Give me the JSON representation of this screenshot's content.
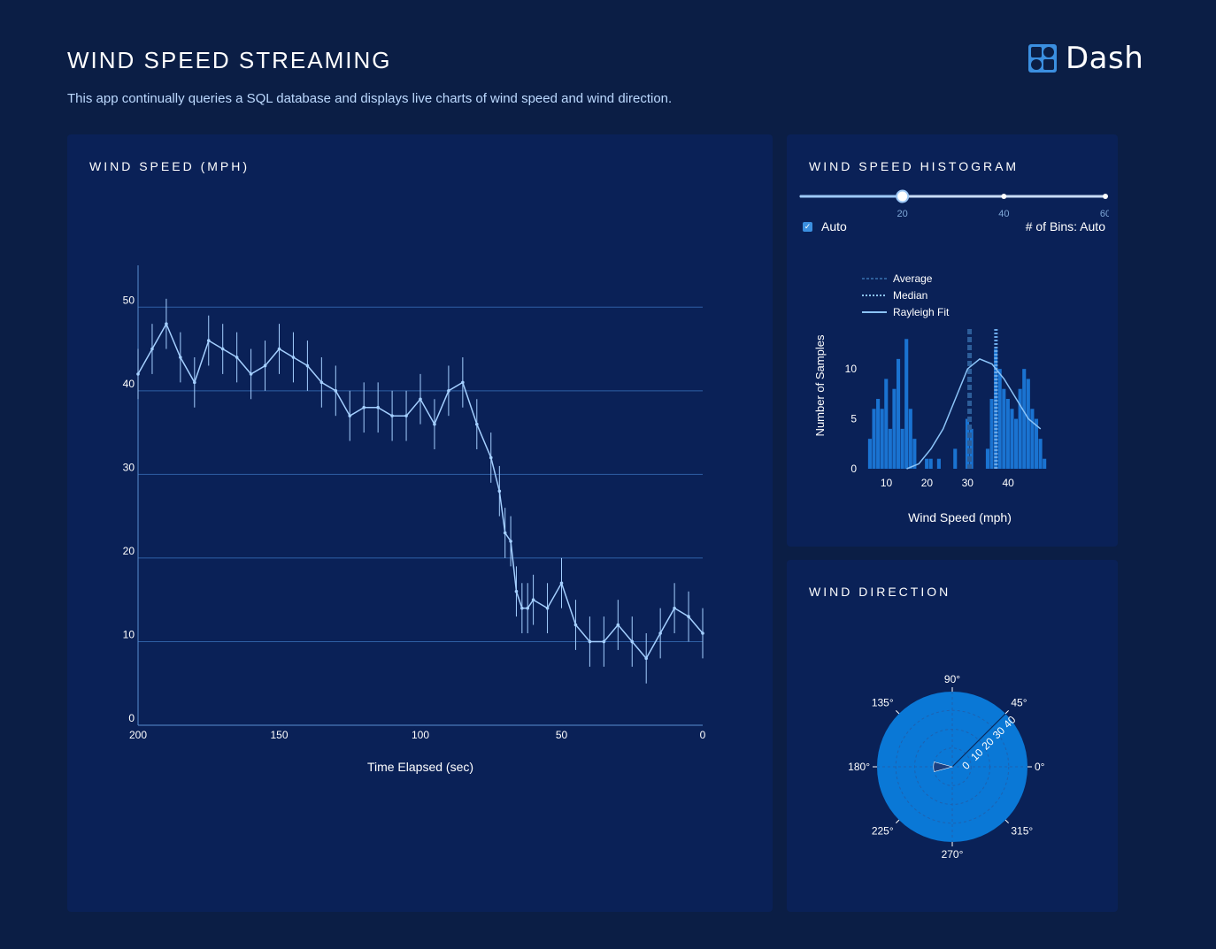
{
  "header": {
    "title": "WIND SPEED STREAMING",
    "description": "This app continually queries a SQL database and displays live charts of wind speed and wind direction.",
    "logo_text": "Dash"
  },
  "speed_panel": {
    "title": "WIND SPEED (MPH)"
  },
  "hist_panel": {
    "title": "WIND SPEED HISTOGRAM",
    "slider": {
      "value": 20,
      "min": 0,
      "max": 60,
      "marks": [
        "20",
        "40",
        "60"
      ]
    },
    "auto_label": "Auto",
    "auto_checked": true,
    "bins_label": "# of Bins: Auto"
  },
  "dir_panel": {
    "title": "WIND DIRECTION"
  },
  "colors": {
    "page_bg": "#0b1e45",
    "panel_bg": "#0a2157",
    "accent": "#3b8fe0",
    "line": "#a4cfff",
    "bar": "#1a73d1",
    "polar_bg": "#0a78d6"
  },
  "chart_data": [
    {
      "type": "line",
      "title": "",
      "xlabel": "Time Elapsed (sec)",
      "ylabel": "",
      "xlim": [
        200,
        0
      ],
      "ylim": [
        0,
        55
      ],
      "x_ticks": [
        "200",
        "150",
        "100",
        "50",
        "0"
      ],
      "y_ticks": [
        "0",
        "10",
        "20",
        "30",
        "40",
        "50"
      ],
      "grid": true,
      "error_bars": true,
      "series": [
        {
          "x": [
            200,
            195,
            190,
            185,
            180,
            175,
            170,
            165,
            160,
            155,
            150,
            145,
            140,
            135,
            130,
            125,
            120,
            115,
            110,
            105,
            100,
            95,
            90,
            85,
            80,
            75,
            72,
            70,
            68,
            66,
            64,
            62,
            60,
            55,
            50,
            45,
            40,
            35,
            30,
            25,
            20,
            15,
            10,
            5,
            0
          ],
          "values": [
            42,
            45,
            48,
            44,
            41,
            46,
            45,
            44,
            42,
            43,
            45,
            44,
            43,
            41,
            40,
            37,
            38,
            38,
            37,
            37,
            39,
            36,
            40,
            41,
            36,
            32,
            28,
            23,
            22,
            16,
            14,
            14,
            15,
            14,
            17,
            12,
            10,
            10,
            12,
            10,
            8,
            11,
            14,
            13,
            11
          ]
        }
      ]
    },
    {
      "type": "bar",
      "title": "",
      "xlabel": "Wind Speed (mph)",
      "ylabel": "Number of Samples",
      "xlim": [
        4,
        50
      ],
      "ylim": [
        0,
        14
      ],
      "x_ticks": [
        "10",
        "20",
        "30",
        "40"
      ],
      "y_ticks": [
        "0",
        "5",
        "10"
      ],
      "legend": [
        "Average",
        "Median",
        "Rayleigh Fit"
      ],
      "legend_position": "top-left",
      "x": [
        6,
        7,
        8,
        9,
        10,
        11,
        12,
        13,
        14,
        15,
        16,
        17,
        20,
        21,
        23,
        27,
        30,
        31,
        35,
        36,
        37,
        38,
        39,
        40,
        41,
        42,
        43,
        44,
        45,
        46,
        47,
        48,
        49
      ],
      "values": [
        3,
        6,
        7,
        6,
        9,
        4,
        8,
        11,
        4,
        13,
        6,
        3,
        1,
        1,
        1,
        2,
        5,
        4,
        2,
        7,
        12,
        10,
        8,
        7,
        6,
        5,
        8,
        10,
        9,
        6,
        5,
        3,
        1
      ],
      "average": 30.5,
      "median": 37,
      "rayleigh_fit": {
        "x": [
          15,
          18,
          21,
          24,
          27,
          30,
          33,
          36,
          39,
          42,
          45,
          48
        ],
        "y": [
          0,
          0.5,
          2,
          4,
          7,
          10,
          11,
          10.5,
          9,
          7,
          5,
          4
        ]
      }
    },
    {
      "type": "polar",
      "title": "",
      "angular_ticks": [
        "0°",
        "45°",
        "90°",
        "135°",
        "180°",
        "225°",
        "270°",
        "315°"
      ],
      "radial_ticks": [
        "0",
        "10",
        "20",
        "30",
        "40"
      ],
      "radial_range": [
        0,
        40
      ],
      "bars": [
        {
          "direction_deg": 180,
          "speed": 10,
          "width_deg": 30
        }
      ]
    }
  ]
}
